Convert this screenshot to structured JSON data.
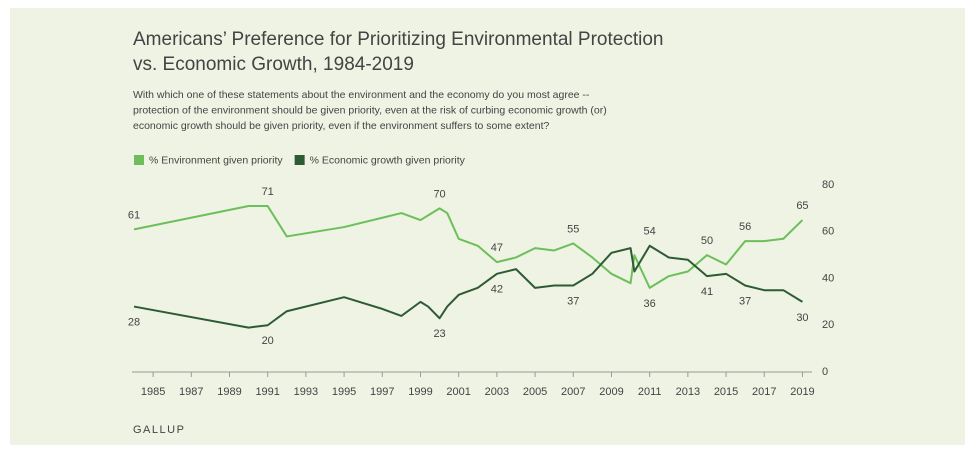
{
  "chart_data": {
    "type": "line",
    "title": [
      "Americans’ Preference for Prioritizing Environmental Protection",
      "vs. Economic Growth, 1984-2019"
    ],
    "subtitle": [
      "With which one of these statements about the environment and the economy do you most agree --",
      "protection of the environment should be given priority, even at the risk of curbing economic growth (or)",
      "economic growth should be given priority, even if the environment suffers to some extent?"
    ],
    "source": "GALLUP",
    "x": [
      1984,
      1990,
      1991,
      1992,
      1995,
      1997,
      1998,
      1999,
      1999.4,
      2000,
      2000.4,
      2001,
      2002,
      2003,
      2004,
      2005,
      2006,
      2007,
      2008,
      2009,
      2010,
      2010.2,
      2011,
      2012,
      2013,
      2014,
      2015,
      2016,
      2017,
      2018,
      2019
    ],
    "series": [
      {
        "name": "% Environment given priority",
        "color": "#6cbf5a",
        "values": [
          61,
          71,
          71,
          58,
          62,
          66,
          68,
          65,
          67,
          70,
          68,
          57,
          54,
          47,
          49,
          53,
          52,
          55,
          49,
          42,
          38,
          50,
          36,
          41,
          43,
          50,
          46,
          56,
          56,
          57,
          65
        ],
        "labeled_points": [
          0,
          2,
          9,
          13,
          17,
          22,
          25,
          27,
          30
        ]
      },
      {
        "name": "% Economic growth given priority",
        "color": "#2e5b35",
        "values": [
          28,
          19,
          20,
          26,
          32,
          27,
          24,
          30,
          28,
          23,
          28,
          33,
          36,
          42,
          44,
          36,
          37,
          37,
          42,
          51,
          53,
          43,
          54,
          49,
          48,
          41,
          42,
          37,
          35,
          35,
          30
        ],
        "labeled_points": [
          0,
          2,
          9,
          13,
          17,
          22,
          25,
          27,
          30
        ]
      }
    ],
    "xlim": [
      1984,
      2019.5
    ],
    "xticks": [
      1985,
      1987,
      1989,
      1991,
      1993,
      1995,
      1997,
      1999,
      2001,
      2003,
      2005,
      2007,
      2009,
      2011,
      2013,
      2015,
      2017,
      2019
    ],
    "ylim": [
      0,
      80
    ],
    "yticks": [
      0,
      20,
      40,
      60,
      80
    ],
    "y_axis_side": "right",
    "grid": false
  }
}
